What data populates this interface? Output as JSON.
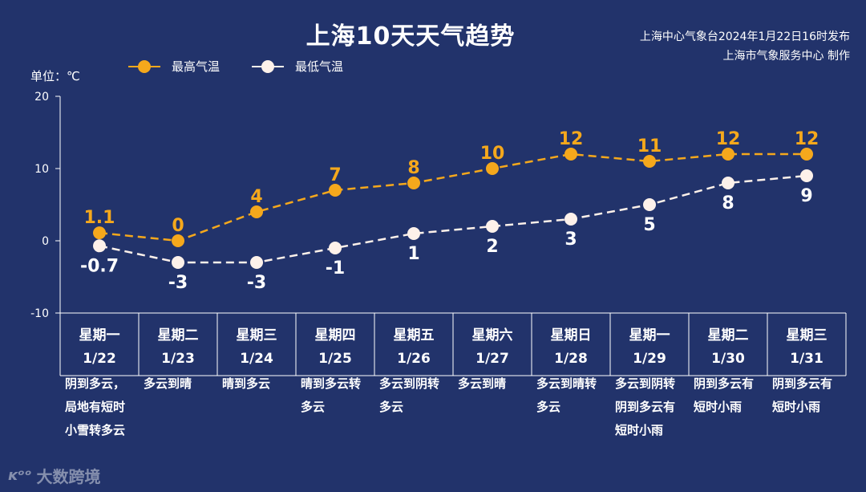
{
  "header": {
    "title": "上海10天天气趋势",
    "source_line1": "上海中心气象台2024年1月22日16时发布",
    "source_line2": "上海市气象服务中心 制作"
  },
  "unit_label": "单位：℃",
  "colors": {
    "background": "#22336b",
    "max_series": "#f5a81c",
    "min_series": "#fdf1ea",
    "axis": "#ffffff"
  },
  "chart_data": {
    "type": "line",
    "title": "上海10天天气趋势",
    "ylabel": "单位：℃",
    "ylim": [
      -10,
      20
    ],
    "yticks": [
      -10,
      0,
      10,
      20
    ],
    "grid": false,
    "legend_position": "top-left",
    "days": [
      {
        "weekday": "星期一",
        "date": "1/22",
        "weather": [
          "阴到多云，",
          "局地有短时",
          "小雪转多云"
        ]
      },
      {
        "weekday": "星期二",
        "date": "1/23",
        "weather": [
          "多云到晴"
        ]
      },
      {
        "weekday": "星期三",
        "date": "1/24",
        "weather": [
          "晴到多云"
        ]
      },
      {
        "weekday": "星期四",
        "date": "1/25",
        "weather": [
          "晴到多云转",
          "多云"
        ]
      },
      {
        "weekday": "星期五",
        "date": "1/26",
        "weather": [
          "多云到阴转",
          "多云"
        ]
      },
      {
        "weekday": "星期六",
        "date": "1/27",
        "weather": [
          "多云到晴"
        ]
      },
      {
        "weekday": "星期日",
        "date": "1/28",
        "weather": [
          "多云到晴转",
          "多云"
        ]
      },
      {
        "weekday": "星期一",
        "date": "1/29",
        "weather": [
          "多云到阴转",
          "阴到多云有",
          "短时小雨"
        ]
      },
      {
        "weekday": "星期二",
        "date": "1/30",
        "weather": [
          "阴到多云有",
          "短时小雨"
        ]
      },
      {
        "weekday": "星期三",
        "date": "1/31",
        "weather": [
          "阴到多云有",
          "短时小雨"
        ]
      }
    ],
    "series": [
      {
        "name": "最高气温",
        "values": [
          1.1,
          0,
          4,
          7,
          8,
          10,
          12,
          11,
          12,
          12
        ],
        "labels": [
          "1.1",
          "0",
          "4",
          "7",
          "8",
          "10",
          "12",
          "11",
          "12",
          "12"
        ]
      },
      {
        "name": "最低气温",
        "values": [
          -0.7,
          -3,
          -3,
          -1,
          1,
          2,
          3,
          5,
          8,
          9
        ],
        "labels": [
          "-0.7",
          "-3",
          "-3",
          "-1",
          "1",
          "2",
          "3",
          "5",
          "8",
          "9"
        ]
      }
    ]
  },
  "watermark": {
    "logo": "ᴋᵒᵒ",
    "text": "大数跨境"
  }
}
